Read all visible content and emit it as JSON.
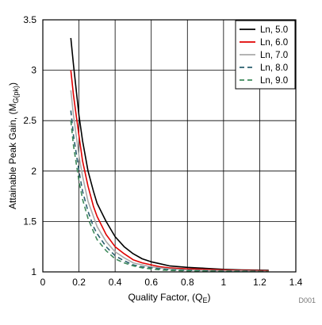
{
  "chart_data": {
    "type": "line",
    "xlabel": "Quality Factor, (Q",
    "xlabel_sub": "E",
    "xlabel_end": ")",
    "ylabel": "Attainable Peak Gain, (M",
    "ylabel_sub": "G(pk)",
    "ylabel_end": ")",
    "xlim": [
      0,
      1.4
    ],
    "ylim": [
      1,
      3.5
    ],
    "xticks": [
      0,
      0.2,
      0.4,
      0.6,
      0.8,
      1,
      1.2,
      1.4
    ],
    "xtick_labels": [
      "0",
      "0.2",
      "0.4",
      "0.6",
      "0.8",
      "1",
      "1.2",
      "1.4"
    ],
    "yticks": [
      1,
      1.5,
      2,
      2.5,
      3,
      3.5
    ],
    "ytick_labels": [
      "1",
      "1.5",
      "2",
      "2.5",
      "3",
      "3.5"
    ],
    "grid": true,
    "legend_position": "top-right",
    "doc_id": "D001",
    "series": [
      {
        "name": "Ln, 5.0",
        "color": "#000000",
        "dash": "none",
        "x": [
          0.155,
          0.17,
          0.2,
          0.22,
          0.25,
          0.28,
          0.3,
          0.35,
          0.4,
          0.45,
          0.5,
          0.55,
          0.6,
          0.65,
          0.7,
          0.8,
          0.9,
          1.0,
          1.1,
          1.25
        ],
        "y": [
          3.32,
          3.05,
          2.55,
          2.3,
          2.0,
          1.8,
          1.68,
          1.5,
          1.35,
          1.25,
          1.18,
          1.13,
          1.1,
          1.08,
          1.06,
          1.045,
          1.035,
          1.025,
          1.02,
          1.015
        ]
      },
      {
        "name": "Ln, 6.0",
        "color": "#e00000",
        "dash": "none",
        "x": [
          0.155,
          0.17,
          0.2,
          0.22,
          0.25,
          0.28,
          0.3,
          0.35,
          0.4,
          0.45,
          0.5,
          0.55,
          0.6,
          0.65,
          0.7,
          0.8,
          0.9,
          1.0,
          1.1,
          1.25
        ],
        "y": [
          3.0,
          2.75,
          2.35,
          2.1,
          1.85,
          1.65,
          1.55,
          1.37,
          1.25,
          1.18,
          1.12,
          1.09,
          1.07,
          1.05,
          1.04,
          1.03,
          1.025,
          1.02,
          1.015,
          1.01
        ]
      },
      {
        "name": "Ln, 7.0",
        "color": "#aaaaaa",
        "dash": "none",
        "x": [
          0.155,
          0.17,
          0.2,
          0.22,
          0.25,
          0.28,
          0.3,
          0.35,
          0.4,
          0.45,
          0.5,
          0.55,
          0.6,
          0.65,
          0.7,
          0.8,
          0.9,
          1.0,
          1.1,
          1.25
        ],
        "y": [
          2.8,
          2.55,
          2.15,
          1.95,
          1.7,
          1.55,
          1.45,
          1.3,
          1.2,
          1.14,
          1.09,
          1.07,
          1.05,
          1.04,
          1.03,
          1.02,
          1.015,
          1.012,
          1.01,
          1.005
        ]
      },
      {
        "name": "Ln, 8.0",
        "color": "#2a5f6e",
        "dash": "6,4",
        "x": [
          0.155,
          0.17,
          0.2,
          0.22,
          0.25,
          0.28,
          0.3,
          0.35,
          0.4,
          0.45,
          0.5,
          0.55,
          0.6,
          0.65,
          0.7,
          0.8,
          0.9,
          1.0,
          1.1,
          1.25
        ],
        "y": [
          2.6,
          2.35,
          2.0,
          1.8,
          1.6,
          1.45,
          1.38,
          1.25,
          1.16,
          1.11,
          1.07,
          1.05,
          1.04,
          1.03,
          1.02,
          1.015,
          1.012,
          1.01,
          1.008,
          1.005
        ]
      },
      {
        "name": "Ln, 9.0",
        "color": "#3f8a5b",
        "dash": "6,4",
        "x": [
          0.155,
          0.17,
          0.2,
          0.22,
          0.25,
          0.28,
          0.3,
          0.35,
          0.4,
          0.45,
          0.5,
          0.55,
          0.6,
          0.65,
          0.7,
          0.8,
          0.9,
          1.0,
          1.1,
          1.25
        ],
        "y": [
          2.5,
          2.25,
          1.9,
          1.72,
          1.53,
          1.4,
          1.32,
          1.21,
          1.13,
          1.09,
          1.06,
          1.04,
          1.03,
          1.02,
          1.015,
          1.01,
          1.008,
          1.006,
          1.005,
          1.003
        ]
      }
    ]
  }
}
